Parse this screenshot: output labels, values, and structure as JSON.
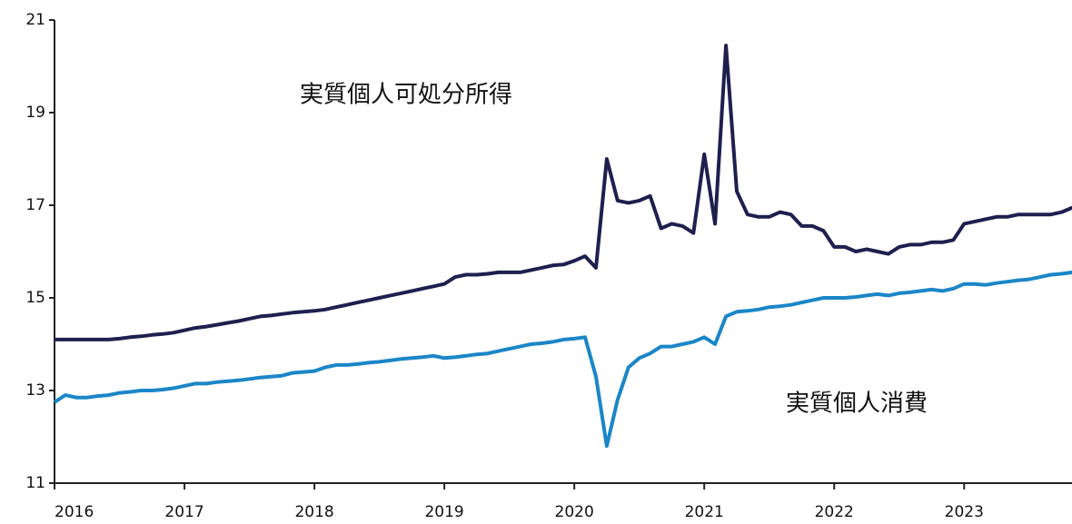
{
  "chart_data": {
    "type": "line",
    "x": [
      2016,
      2016.083,
      2016.167,
      2016.25,
      2016.333,
      2016.417,
      2016.5,
      2016.583,
      2016.667,
      2016.75,
      2016.833,
      2016.917,
      2017,
      2017.083,
      2017.167,
      2017.25,
      2017.333,
      2017.417,
      2017.5,
      2017.583,
      2017.667,
      2017.75,
      2017.833,
      2017.917,
      2018,
      2018.083,
      2018.167,
      2018.25,
      2018.333,
      2018.417,
      2018.5,
      2018.583,
      2018.667,
      2018.75,
      2018.833,
      2018.917,
      2019,
      2019.083,
      2019.167,
      2019.25,
      2019.333,
      2019.417,
      2019.5,
      2019.583,
      2019.667,
      2019.75,
      2019.833,
      2019.917,
      2020,
      2020.083,
      2020.167,
      2020.25,
      2020.333,
      2020.417,
      2020.5,
      2020.583,
      2020.667,
      2020.75,
      2020.833,
      2020.917,
      2021,
      2021.083,
      2021.167,
      2021.25,
      2021.333,
      2021.417,
      2021.5,
      2021.583,
      2021.667,
      2021.75,
      2021.833,
      2021.917,
      2022,
      2022.083,
      2022.167,
      2022.25,
      2022.333,
      2022.417,
      2022.5,
      2022.583,
      2022.667,
      2022.75,
      2022.833,
      2022.917,
      2023,
      2023.083,
      2023.167,
      2023.25,
      2023.333,
      2023.417,
      2023.5,
      2023.583,
      2023.667,
      2023.75,
      2023.833
    ],
    "series": [
      {
        "name": "実質個人可処分所得",
        "color": "#1f1f4f",
        "values": [
          14.1,
          14.1,
          14.1,
          14.1,
          14.1,
          14.1,
          14.12,
          14.15,
          14.17,
          14.2,
          14.22,
          14.25,
          14.3,
          14.35,
          14.38,
          14.42,
          14.46,
          14.5,
          14.55,
          14.6,
          14.62,
          14.65,
          14.68,
          14.7,
          14.72,
          14.75,
          14.8,
          14.85,
          14.9,
          14.95,
          15.0,
          15.05,
          15.1,
          15.15,
          15.2,
          15.25,
          15.3,
          15.45,
          15.5,
          15.5,
          15.52,
          15.55,
          15.55,
          15.55,
          15.6,
          15.65,
          15.7,
          15.72,
          15.8,
          15.9,
          15.65,
          18.0,
          17.1,
          17.05,
          17.1,
          17.2,
          16.5,
          16.6,
          16.55,
          16.4,
          18.1,
          16.6,
          20.45,
          17.3,
          16.8,
          16.75,
          16.75,
          16.85,
          16.8,
          16.55,
          16.55,
          16.45,
          16.1,
          16.1,
          16.0,
          16.05,
          16.0,
          15.95,
          16.1,
          16.15,
          16.15,
          16.2,
          16.2,
          16.25,
          16.6,
          16.65,
          16.7,
          16.75,
          16.75,
          16.8,
          16.8,
          16.8,
          16.8,
          16.85,
          16.95
        ]
      },
      {
        "name": "実質個人消費",
        "color": "#1a86c8",
        "values": [
          12.75,
          12.9,
          12.85,
          12.85,
          12.88,
          12.9,
          12.95,
          12.97,
          13.0,
          13.0,
          13.02,
          13.05,
          13.1,
          13.15,
          13.15,
          13.18,
          13.2,
          13.22,
          13.25,
          13.28,
          13.3,
          13.32,
          13.38,
          13.4,
          13.42,
          13.5,
          13.55,
          13.55,
          13.57,
          13.6,
          13.62,
          13.65,
          13.68,
          13.7,
          13.72,
          13.75,
          13.7,
          13.72,
          13.75,
          13.78,
          13.8,
          13.85,
          13.9,
          13.95,
          14.0,
          14.02,
          14.05,
          14.1,
          14.12,
          14.15,
          13.3,
          11.8,
          12.8,
          13.5,
          13.7,
          13.8,
          13.95,
          13.95,
          14.0,
          14.05,
          14.15,
          14.0,
          14.6,
          14.7,
          14.72,
          14.75,
          14.8,
          14.82,
          14.85,
          14.9,
          14.95,
          15.0,
          15.0,
          15.0,
          15.02,
          15.05,
          15.08,
          15.05,
          15.1,
          15.12,
          15.15,
          15.18,
          15.15,
          15.2,
          15.3,
          15.3,
          15.28,
          15.32,
          15.35,
          15.38,
          15.4,
          15.45,
          15.5,
          15.52,
          15.55
        ]
      }
    ],
    "xlim": [
      2016,
      2023.83
    ],
    "xticks": [
      2016,
      2017,
      2018,
      2019,
      2020,
      2021,
      2022,
      2023
    ],
    "ylim": [
      11,
      21
    ],
    "yticks": [
      11,
      13,
      15,
      17,
      19,
      21
    ]
  }
}
